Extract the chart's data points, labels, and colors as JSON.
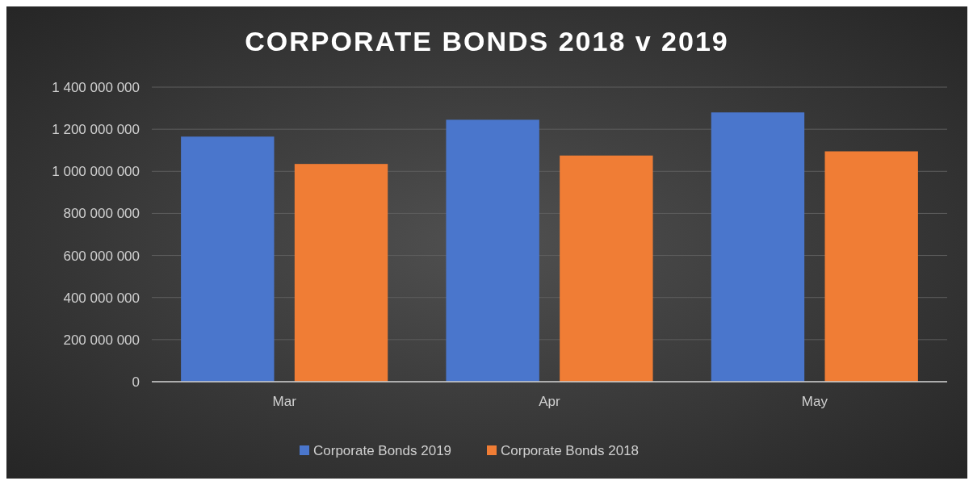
{
  "chart_data": {
    "type": "bar",
    "title": "CORPORATE BONDS 2018 v 2019",
    "categories": [
      "Mar",
      "Apr",
      "May"
    ],
    "series": [
      {
        "name": "Corporate Bonds 2019",
        "color": "#4a76cc",
        "values": [
          1165000000,
          1245000000,
          1280000000
        ]
      },
      {
        "name": "Corporate Bonds 2018",
        "color": "#f07d35",
        "values": [
          1035000000,
          1075000000,
          1095000000
        ]
      }
    ],
    "ylim": [
      0,
      1400000000
    ],
    "yticks": [
      0,
      {
        "value": 200000000,
        "label": "200 000 000"
      },
      {
        "value": 400000000,
        "label": "400 000 000"
      },
      {
        "value": 600000000,
        "label": "600 000 000"
      },
      {
        "value": 800000000,
        "label": "800 000 000"
      },
      {
        "value": 1000000000,
        "label": "1 000 000 000"
      },
      {
        "value": 1200000000,
        "label": "1 200 000 000"
      },
      {
        "value": 1400000000,
        "label": "1 400 000 000"
      }
    ],
    "grid": "y",
    "legend": "bottom"
  }
}
